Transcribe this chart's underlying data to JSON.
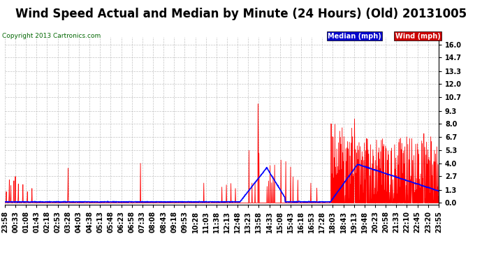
{
  "title": "Wind Speed Actual and Median by Minute (24 Hours) (Old) 20131005",
  "copyright": "Copyright 2013 Cartronics.com",
  "legend_median": "Median (mph)",
  "legend_wind": "Wind (mph)",
  "legend_median_bg": "#0000cc",
  "legend_wind_bg": "#cc0000",
  "yticks": [
    0.0,
    1.3,
    2.7,
    4.0,
    5.3,
    6.7,
    8.0,
    9.3,
    10.7,
    12.0,
    13.3,
    14.7,
    16.0
  ],
  "ylim": [
    -0.15,
    16.8
  ],
  "bg_color": "#ffffff",
  "plot_bg_color": "#ffffff",
  "grid_color": "#aaaaaa",
  "wind_color": "#ff0000",
  "median_color": "#0000ff",
  "title_fontsize": 12,
  "axis_fontsize": 7,
  "xtick_labels": [
    "23:58",
    "00:33",
    "01:08",
    "01:43",
    "02:18",
    "02:53",
    "03:28",
    "04:03",
    "04:38",
    "05:13",
    "05:48",
    "06:23",
    "06:58",
    "07:33",
    "08:08",
    "08:43",
    "09:18",
    "09:53",
    "10:28",
    "11:03",
    "11:38",
    "12:13",
    "12:48",
    "13:23",
    "13:58",
    "14:33",
    "15:08",
    "15:43",
    "16:18",
    "16:53",
    "17:28",
    "18:03",
    "18:43",
    "19:13",
    "19:48",
    "20:23",
    "20:58",
    "21:33",
    "22:10",
    "22:45",
    "23:20",
    "23:55"
  ]
}
